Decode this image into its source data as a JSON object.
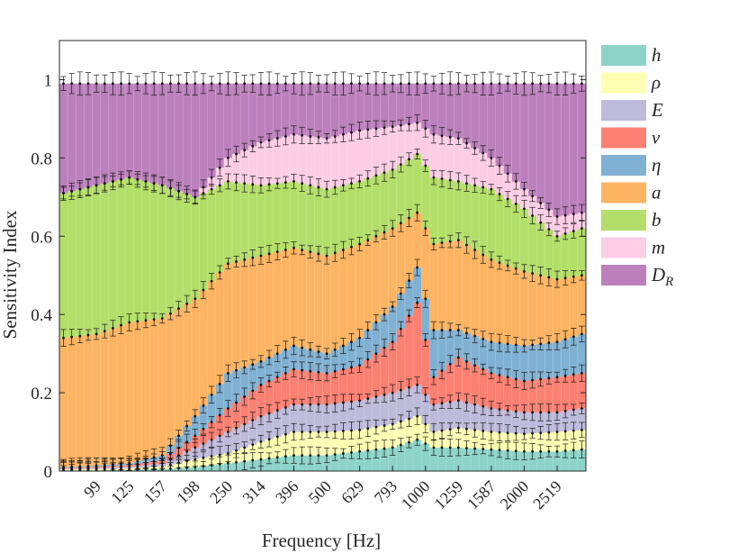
{
  "chart_data": {
    "type": "bar",
    "stacked": true,
    "title": "",
    "xlabel": "Frequency [Hz]",
    "ylabel": "Sensitivity Index",
    "ylim": [
      0,
      1.1
    ],
    "yticks": [
      0,
      0.2,
      0.4,
      0.6,
      0.8,
      1
    ],
    "ytick_labels": [
      "0",
      "0.2",
      "0.4",
      "0.6",
      "0.8",
      "1"
    ],
    "x_tick_labels": [
      "99",
      "125",
      "157",
      "198",
      "250",
      "314",
      "396",
      "500",
      "629",
      "793",
      "1000",
      "1259",
      "1587",
      "2000",
      "2519"
    ],
    "x_tick_positions": [
      4,
      8,
      12,
      16,
      20,
      24,
      28,
      32,
      36,
      40,
      44,
      48,
      52,
      56,
      60
    ],
    "n_bands": 64,
    "legend_position": "outside-right",
    "error_bars": true,
    "stack_order": [
      "h",
      "rho",
      "E",
      "nu",
      "eta",
      "a",
      "b",
      "m",
      "D_R"
    ],
    "series": [
      {
        "key": "h",
        "name": "h",
        "sub": "",
        "color": "#8dd3c7"
      },
      {
        "key": "rho",
        "name": "ρ",
        "sub": "",
        "color": "#ffffb3"
      },
      {
        "key": "E",
        "name": "E",
        "sub": "",
        "color": "#bebada"
      },
      {
        "key": "nu",
        "name": "ν",
        "sub": "",
        "color": "#fb8072"
      },
      {
        "key": "eta",
        "name": "η",
        "sub": "",
        "color": "#80b1d3"
      },
      {
        "key": "a",
        "name": "a",
        "sub": "",
        "color": "#fdb462"
      },
      {
        "key": "b",
        "name": "b",
        "sub": "",
        "color": "#b3de69"
      },
      {
        "key": "m",
        "name": "m",
        "sub": "",
        "color": "#fccde5"
      },
      {
        "key": "D_R",
        "name": "D",
        "sub": "R",
        "color": "#bc80bd"
      }
    ],
    "cumulative_boundaries": [
      {
        "band": 0,
        "values": [
          0.002,
          0.004,
          0.006,
          0.008,
          0.01,
          0.34,
          0.71,
          0.71,
          0.99
        ]
      },
      {
        "band": 4,
        "values": [
          0.002,
          0.005,
          0.008,
          0.011,
          0.014,
          0.35,
          0.73,
          0.73,
          0.99
        ]
      },
      {
        "band": 8,
        "values": [
          0.003,
          0.007,
          0.011,
          0.015,
          0.02,
          0.38,
          0.75,
          0.75,
          0.99
        ]
      },
      {
        "band": 12,
        "values": [
          0.005,
          0.012,
          0.02,
          0.028,
          0.04,
          0.39,
          0.73,
          0.73,
          0.99
        ]
      },
      {
        "band": 16,
        "values": [
          0.01,
          0.03,
          0.06,
          0.09,
          0.14,
          0.44,
          0.7,
          0.7,
          0.99
        ]
      },
      {
        "band": 20,
        "values": [
          0.02,
          0.045,
          0.1,
          0.16,
          0.25,
          0.53,
          0.74,
          0.8,
          0.99
        ]
      },
      {
        "band": 24,
        "values": [
          0.03,
          0.075,
          0.14,
          0.22,
          0.28,
          0.55,
          0.73,
          0.84,
          0.99
        ]
      },
      {
        "band": 28,
        "values": [
          0.04,
          0.1,
          0.17,
          0.26,
          0.32,
          0.57,
          0.74,
          0.86,
          0.99
        ]
      },
      {
        "band": 32,
        "values": [
          0.04,
          0.1,
          0.17,
          0.25,
          0.3,
          0.55,
          0.72,
          0.85,
          0.99
        ]
      },
      {
        "band": 36,
        "values": [
          0.05,
          0.105,
          0.18,
          0.27,
          0.34,
          0.58,
          0.74,
          0.87,
          0.99
        ]
      },
      {
        "band": 40,
        "values": [
          0.06,
          0.12,
          0.2,
          0.33,
          0.42,
          0.62,
          0.77,
          0.88,
          0.99
        ]
      },
      {
        "band": 43,
        "values": [
          0.08,
          0.14,
          0.22,
          0.43,
          0.52,
          0.66,
          0.81,
          0.89,
          0.99
        ]
      },
      {
        "band": 45,
        "values": [
          0.06,
          0.1,
          0.17,
          0.24,
          0.36,
          0.58,
          0.75,
          0.86,
          0.99
        ]
      },
      {
        "band": 48,
        "values": [
          0.06,
          0.11,
          0.18,
          0.29,
          0.36,
          0.59,
          0.74,
          0.85,
          0.99
        ]
      },
      {
        "band": 52,
        "values": [
          0.055,
          0.1,
          0.16,
          0.25,
          0.33,
          0.54,
          0.72,
          0.8,
          0.99
        ]
      },
      {
        "band": 56,
        "values": [
          0.05,
          0.095,
          0.15,
          0.23,
          0.32,
          0.51,
          0.67,
          0.72,
          0.99
        ]
      },
      {
        "band": 60,
        "values": [
          0.05,
          0.1,
          0.15,
          0.24,
          0.33,
          0.49,
          0.6,
          0.65,
          0.99
        ]
      },
      {
        "band": 63,
        "values": [
          0.055,
          0.105,
          0.16,
          0.25,
          0.35,
          0.5,
          0.62,
          0.66,
          0.99
        ]
      }
    ]
  }
}
